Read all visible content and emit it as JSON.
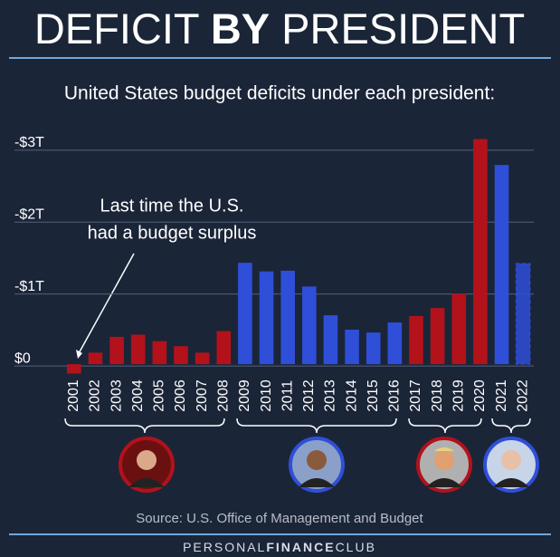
{
  "header": {
    "title_before": "DEFICIT",
    "title_bold": "BY",
    "title_after": "PRESIDENT"
  },
  "chart_data": {
    "type": "bar",
    "subtitle": "United States budget deficits under each president:",
    "categories": [
      "2001",
      "2002",
      "2003",
      "2004",
      "2005",
      "2006",
      "2007",
      "2008",
      "2009",
      "2010",
      "2011",
      "2012",
      "2013",
      "2014",
      "2015",
      "2016",
      "2017",
      "2018",
      "2019",
      "2020",
      "2021",
      "2022"
    ],
    "values": [
      0.13,
      -0.16,
      -0.38,
      -0.41,
      -0.32,
      -0.25,
      -0.16,
      -0.46,
      -1.41,
      -1.29,
      -1.3,
      -1.08,
      -0.68,
      -0.48,
      -0.44,
      -0.58,
      -0.67,
      -0.78,
      -0.98,
      -3.13,
      -2.77,
      -1.4
    ],
    "colors": [
      "#b3121b",
      "#b3121b",
      "#b3121b",
      "#b3121b",
      "#b3121b",
      "#b3121b",
      "#b3121b",
      "#b3121b",
      "#2f4fd8",
      "#2f4fd8",
      "#2f4fd8",
      "#2f4fd8",
      "#2f4fd8",
      "#2f4fd8",
      "#2f4fd8",
      "#2f4fd8",
      "#b3121b",
      "#b3121b",
      "#b3121b",
      "#b3121b",
      "#2f4fd8",
      "#2f4fd8"
    ],
    "dashed": [
      false,
      false,
      false,
      false,
      false,
      false,
      false,
      false,
      false,
      false,
      false,
      false,
      false,
      false,
      false,
      false,
      false,
      false,
      false,
      false,
      false,
      true
    ],
    "ylim": [
      0.15,
      -3.2
    ],
    "yticks": [
      {
        "value": 0,
        "label": "$0"
      },
      {
        "value": -1,
        "label": "-$1T"
      },
      {
        "value": -2,
        "label": "-$2T"
      },
      {
        "value": -3,
        "label": "-$3T"
      }
    ],
    "grid": true,
    "annotation": [
      "Last time the U.S.",
      "had a budget surplus"
    ],
    "source": "Source: U.S. Office of Management and Budget"
  },
  "footer": {
    "before": "PERSONAL",
    "bold": "FINANCE",
    "after": "CLUB"
  }
}
